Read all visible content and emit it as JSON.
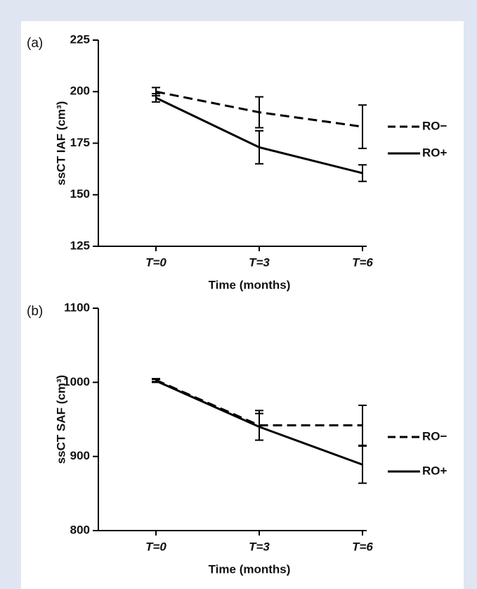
{
  "chart_data": [
    {
      "type": "line",
      "panel_label": "(a)",
      "ylabel": "ssCT IAF (cm³)",
      "xlabel": "Time (months)",
      "categories": [
        "T=0",
        "T=3",
        "T=6"
      ],
      "ylim": [
        125,
        225
      ],
      "yticks": [
        125,
        150,
        175,
        200,
        225
      ],
      "legend": "right",
      "series": [
        {
          "name": "RO−",
          "color": "#000000",
          "linestyle": "dashed",
          "values": [
            200,
            190,
            183
          ],
          "errors": [
            2,
            7.5,
            10.5
          ]
        },
        {
          "name": "RO+",
          "color": "#000000",
          "linestyle": "solid",
          "values": [
            197,
            173,
            160.5
          ],
          "errors": [
            2,
            8,
            4
          ]
        }
      ]
    },
    {
      "type": "line",
      "panel_label": "(b)",
      "ylabel": "ssCT SAF (cm³)",
      "xlabel": "Time (months)",
      "categories": [
        "T=0",
        "T=3",
        "T=6"
      ],
      "ylim": [
        800,
        1100
      ],
      "yticks": [
        800,
        900,
        1000,
        1100
      ],
      "legend": "right",
      "series": [
        {
          "name": "RO−",
          "color": "#000000",
          "linestyle": "dashed",
          "values": [
            1003,
            942,
            942
          ],
          "errors": [
            2,
            20,
            27
          ]
        },
        {
          "name": "RO+",
          "color": "#000000",
          "linestyle": "solid",
          "values": [
            1002,
            940,
            889
          ],
          "errors": [
            2,
            18,
            25
          ]
        }
      ]
    }
  ]
}
